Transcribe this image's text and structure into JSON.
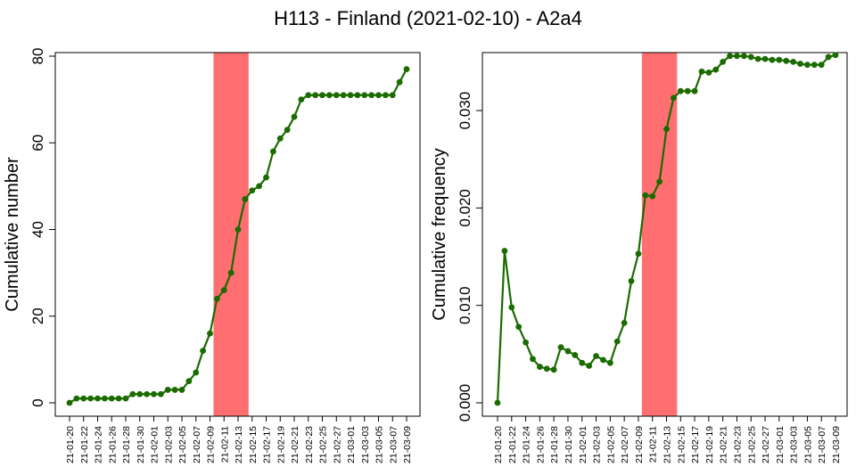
{
  "title": "H113 - Finland (2021-02-10) - A2a4",
  "colors": {
    "line": "#1a6b00",
    "highlight": "#ff6f71",
    "axis": "#000000"
  },
  "chart_data": [
    {
      "type": "line",
      "ylabel": "Cumulative number",
      "ylim": [
        0,
        80
      ],
      "yticks": [
        "0",
        "20",
        "40",
        "60",
        "80"
      ],
      "highlight_range": [
        "21-02-10",
        "21-02-15"
      ],
      "x": [
        "21-01-20",
        "21-01-21",
        "21-01-22",
        "21-01-23",
        "21-01-24",
        "21-01-25",
        "21-01-26",
        "21-01-27",
        "21-01-28",
        "21-01-29",
        "21-01-30",
        "21-01-31",
        "21-02-01",
        "21-02-02",
        "21-02-03",
        "21-02-04",
        "21-02-05",
        "21-02-06",
        "21-02-07",
        "21-02-08",
        "21-02-09",
        "21-02-10",
        "21-02-11",
        "21-02-12",
        "21-02-13",
        "21-02-14",
        "21-02-15",
        "21-02-16",
        "21-02-17",
        "21-02-18",
        "21-02-19",
        "21-02-20",
        "21-02-21",
        "21-02-22",
        "21-02-23",
        "21-02-24",
        "21-02-25",
        "21-02-26",
        "21-02-27",
        "21-02-28",
        "21-03-01",
        "21-03-02",
        "21-03-03",
        "21-03-04",
        "21-03-05",
        "21-03-06",
        "21-03-07",
        "21-03-08",
        "21-03-09"
      ],
      "xtick_labels": [
        "21-01-20",
        "21-01-22",
        "21-01-24",
        "21-01-26",
        "21-01-28",
        "21-01-30",
        "21-02-01",
        "21-02-03",
        "21-02-05",
        "21-02-07",
        "21-02-09",
        "21-02-11",
        "21-02-13",
        "21-02-15",
        "21-02-17",
        "21-02-19",
        "21-02-21",
        "21-02-23",
        "21-02-25",
        "21-02-27",
        "21-03-01",
        "21-03-03",
        "21-03-05",
        "21-03-07",
        "21-03-09"
      ],
      "values": [
        0,
        1,
        1,
        1,
        1,
        1,
        1,
        1,
        1,
        2,
        2,
        2,
        2,
        2,
        3,
        3,
        3,
        5,
        7,
        12,
        16,
        24,
        26,
        30,
        40,
        47,
        49,
        50,
        52,
        58,
        61,
        63,
        66,
        70,
        71,
        71,
        71,
        71,
        71,
        71,
        71,
        71,
        71,
        71,
        71,
        71,
        71,
        74,
        77
      ]
    },
    {
      "type": "line",
      "ylabel": "Cumulative frequency",
      "ylim": [
        0,
        0.0365
      ],
      "yticks": [
        "0.000",
        "0.010",
        "0.020",
        "0.030"
      ],
      "highlight_range": [
        "21-02-10",
        "21-02-15"
      ],
      "x": [
        "21-01-20",
        "21-01-21",
        "21-01-22",
        "21-01-23",
        "21-01-24",
        "21-01-25",
        "21-01-26",
        "21-01-27",
        "21-01-28",
        "21-01-29",
        "21-01-30",
        "21-01-31",
        "21-02-01",
        "21-02-02",
        "21-02-03",
        "21-02-04",
        "21-02-05",
        "21-02-06",
        "21-02-07",
        "21-02-08",
        "21-02-09",
        "21-02-10",
        "21-02-11",
        "21-02-12",
        "21-02-13",
        "21-02-14",
        "21-02-15",
        "21-02-16",
        "21-02-17",
        "21-02-18",
        "21-02-19",
        "21-02-20",
        "21-02-21",
        "21-02-22",
        "21-02-23",
        "21-02-24",
        "21-02-25",
        "21-02-26",
        "21-02-27",
        "21-02-28",
        "21-03-01",
        "21-03-02",
        "21-03-03",
        "21-03-04",
        "21-03-05",
        "21-03-06",
        "21-03-07",
        "21-03-08",
        "21-03-09"
      ],
      "xtick_labels": [
        "21-01-20",
        "21-01-22",
        "21-01-24",
        "21-01-26",
        "21-01-28",
        "21-01-30",
        "21-02-01",
        "21-02-03",
        "21-02-05",
        "21-02-07",
        "21-02-09",
        "21-02-11",
        "21-02-13",
        "21-02-15",
        "21-02-17",
        "21-02-19",
        "21-02-21",
        "21-02-23",
        "21-02-25",
        "21-02-27",
        "21-03-01",
        "21-03-03",
        "21-03-05",
        "21-03-07",
        "21-03-09"
      ],
      "values": [
        0.0,
        0.0156,
        0.0098,
        0.0078,
        0.0062,
        0.0045,
        0.0037,
        0.0035,
        0.0034,
        0.0057,
        0.0053,
        0.0049,
        0.0041,
        0.0038,
        0.0048,
        0.0044,
        0.0041,
        0.0063,
        0.0082,
        0.0125,
        0.0153,
        0.0213,
        0.0212,
        0.0227,
        0.0281,
        0.0313,
        0.032,
        0.032,
        0.032,
        0.034,
        0.0339,
        0.0342,
        0.035,
        0.0356,
        0.0356,
        0.0356,
        0.0355,
        0.0353,
        0.0353,
        0.0352,
        0.0352,
        0.0351,
        0.035,
        0.0348,
        0.0347,
        0.0347,
        0.0347,
        0.0355,
        0.0357
      ]
    }
  ]
}
